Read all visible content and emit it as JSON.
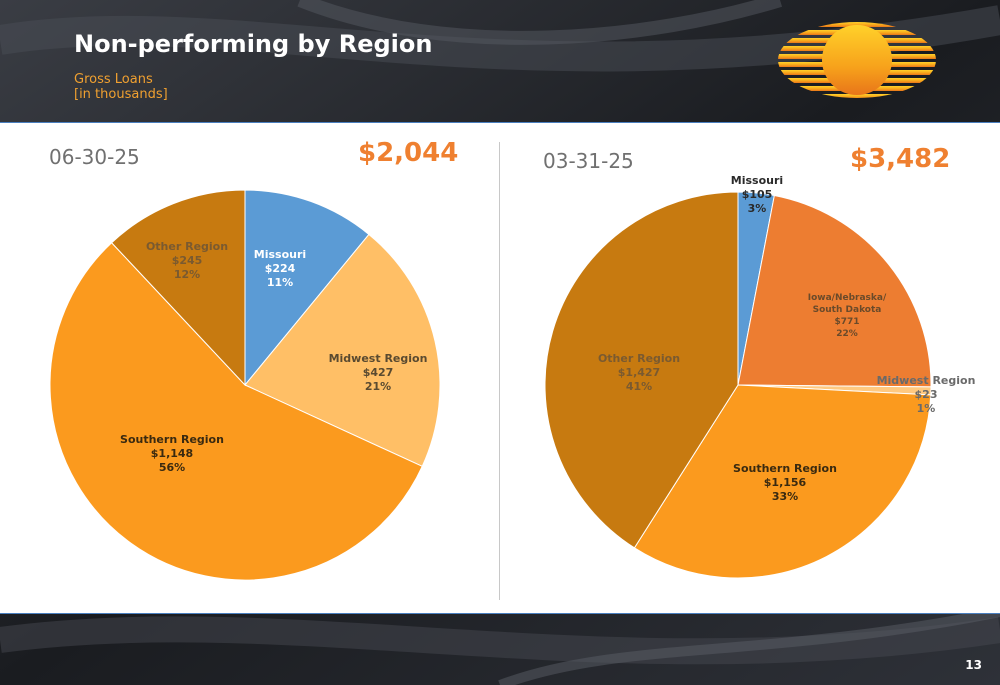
{
  "header": {
    "title": "Non-performing by Region",
    "subtitle_line1": "Gross Loans",
    "subtitle_line2": "[in thousands]"
  },
  "footer": {
    "page_number": "13"
  },
  "colors": {
    "missouri": "#5b9bd5",
    "midwest_left": "#ffbf66",
    "southern": "#fb9a1e",
    "other": "#c77a10",
    "iowa": "#ed7d31",
    "midwest_right": "#ffc980",
    "accent": "#ef8030"
  },
  "chart_data": [
    {
      "type": "pie",
      "date": "06-30-25",
      "total": "$2,044",
      "slices": [
        {
          "name": "Missouri",
          "value": 224,
          "value_label": "$224",
          "percent": 11,
          "percent_label": "11%"
        },
        {
          "name": "Midwest Region",
          "value": 427,
          "value_label": "$427",
          "percent": 21,
          "percent_label": "21%"
        },
        {
          "name": "Southern Region",
          "value": 1148,
          "value_label": "$1,148",
          "percent": 56,
          "percent_label": "56%"
        },
        {
          "name": "Other Region",
          "value": 245,
          "value_label": "$245",
          "percent": 12,
          "percent_label": "12%"
        }
      ]
    },
    {
      "type": "pie",
      "date": "03-31-25",
      "total": "$3,482",
      "slices": [
        {
          "name": "Missouri",
          "value": 105,
          "value_label": "$105",
          "percent": 3,
          "percent_label": "3%"
        },
        {
          "name": "Iowa/Nebraska/ South Dakota",
          "name_lines": [
            "Iowa/Nebraska/",
            "South Dakota"
          ],
          "value": 771,
          "value_label": "$771",
          "percent": 22,
          "percent_label": "22%"
        },
        {
          "name": "Midwest Region",
          "value": 23,
          "value_label": "$23",
          "percent": 1,
          "percent_label": "1%"
        },
        {
          "name": "Southern Region",
          "value": 1156,
          "value_label": "$1,156",
          "percent": 33,
          "percent_label": "33%"
        },
        {
          "name": "Other Region",
          "value": 1427,
          "value_label": "$1,427",
          "percent": 41,
          "percent_label": "41%"
        }
      ]
    }
  ]
}
